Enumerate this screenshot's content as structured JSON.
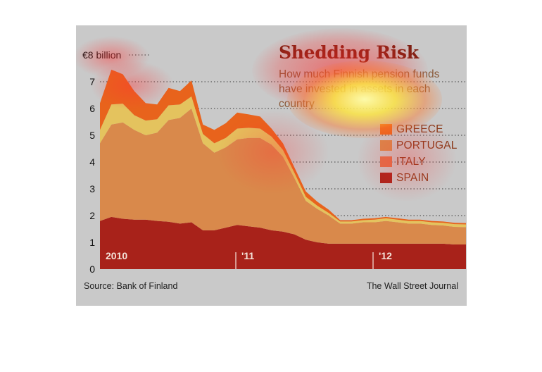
{
  "title": "Shedding Risk",
  "subtitle": "How much Finnish pension funds have invested in assets in each country",
  "source": "Source: Bank of Finland",
  "publisher": "The Wall Street Journal",
  "colors": {
    "greece": "#e8631c",
    "portugal": "#d9894b",
    "italy": "#e4c35e",
    "spain": "#a8221a",
    "background": "#c9c9c9"
  },
  "chart_data": {
    "type": "area",
    "stacked": true,
    "title": "Shedding Risk",
    "subtitle": "How much Finnish pension funds have invested in assets in each country",
    "ylabel": "€8 billion",
    "ylim": [
      0,
      8
    ],
    "y_ticks": [
      0,
      1,
      2,
      3,
      4,
      5,
      6,
      7
    ],
    "y_top_label": "€8 billion",
    "x_tick_labels": [
      "2010",
      "'11",
      "'12"
    ],
    "x_tick_positions": [
      0,
      12,
      24
    ],
    "x": [
      0,
      1,
      2,
      3,
      4,
      5,
      6,
      7,
      8,
      9,
      10,
      11,
      12,
      13,
      14,
      15,
      16,
      17,
      18,
      19,
      20,
      21,
      22,
      23,
      24,
      25,
      26,
      27,
      28,
      29,
      30,
      31,
      32
    ],
    "legend": [
      "GREECE",
      "PORTUGAL",
      "ITALY",
      "SPAIN"
    ],
    "grid": true,
    "series": [
      {
        "name": "SPAIN",
        "values": [
          1.8,
          1.95,
          1.88,
          1.85,
          1.85,
          1.8,
          1.77,
          1.7,
          1.75,
          1.45,
          1.45,
          1.55,
          1.65,
          1.6,
          1.55,
          1.45,
          1.4,
          1.3,
          1.1,
          1.0,
          0.95,
          0.95,
          0.95,
          0.95,
          0.95,
          0.95,
          0.95,
          0.95,
          0.95,
          0.95,
          0.95,
          0.92,
          0.92
        ]
      },
      {
        "name": "PORTUGAL",
        "values": [
          2.9,
          3.45,
          3.6,
          3.35,
          3.15,
          3.3,
          3.8,
          3.95,
          4.25,
          3.25,
          2.9,
          3.0,
          3.2,
          3.3,
          3.35,
          3.2,
          2.8,
          2.1,
          1.45,
          1.25,
          1.05,
          0.75,
          0.75,
          0.8,
          0.8,
          0.85,
          0.8,
          0.75,
          0.75,
          0.7,
          0.68,
          0.66,
          0.65
        ]
      },
      {
        "name": "ITALY",
        "values": [
          0.5,
          0.75,
          0.7,
          0.55,
          0.55,
          0.5,
          0.55,
          0.5,
          0.45,
          0.35,
          0.35,
          0.35,
          0.4,
          0.38,
          0.35,
          0.3,
          0.25,
          0.2,
          0.15,
          0.12,
          0.1,
          0.08,
          0.08,
          0.08,
          0.1,
          0.1,
          0.1,
          0.1,
          0.1,
          0.1,
          0.1,
          0.1,
          0.1
        ]
      },
      {
        "name": "GREECE",
        "values": [
          1.0,
          1.3,
          1.1,
          0.9,
          0.65,
          0.55,
          0.65,
          0.5,
          0.6,
          0.35,
          0.5,
          0.55,
          0.6,
          0.5,
          0.45,
          0.3,
          0.25,
          0.2,
          0.2,
          0.15,
          0.12,
          0.05,
          0.05,
          0.05,
          0.05,
          0.05,
          0.05,
          0.05,
          0.05,
          0.05,
          0.05,
          0.05,
          0.05
        ]
      }
    ]
  }
}
